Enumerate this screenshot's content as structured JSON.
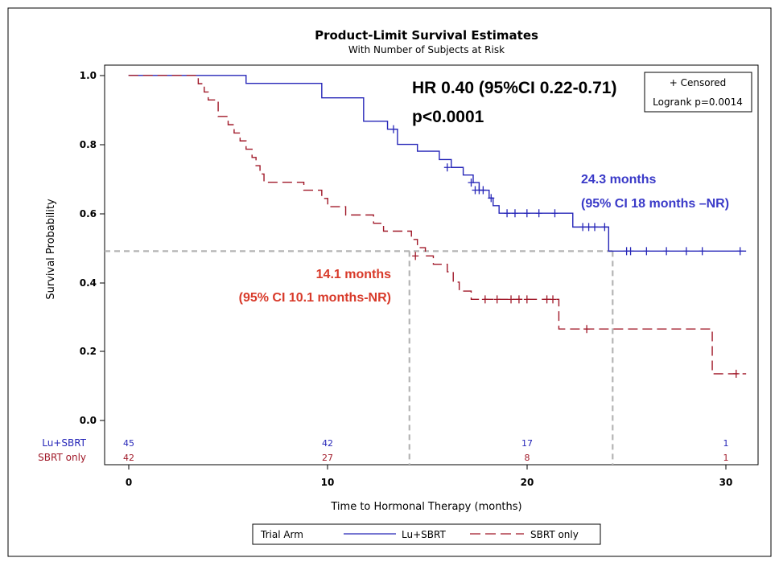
{
  "chart_data": {
    "type": "line",
    "title": "Product-Limit Survival Estimates",
    "subtitle": "With Number of Subjects at Risk",
    "xlabel": "Time to Hormonal Therapy (months)",
    "ylabel": "Survival Probability",
    "xlim": [
      -1.2,
      31.6
    ],
    "ylim": [
      -0.13,
      1.03
    ],
    "x_ticks": [
      0,
      10,
      20,
      30
    ],
    "y_ticks": [
      0.0,
      0.2,
      0.4,
      0.6,
      0.8,
      1.0
    ],
    "x_tick_labels": [
      "0",
      "10",
      "20",
      "30"
    ],
    "y_tick_labels": [
      "0.0",
      "0.2",
      "0.4",
      "0.6",
      "0.8",
      "1.0"
    ],
    "series": [
      {
        "name": "Lu+SBRT",
        "color": "#2626b8",
        "dash": "solid",
        "steps": [
          [
            0,
            1.0
          ],
          [
            5.9,
            0.977
          ],
          [
            9.7,
            0.935
          ],
          [
            11.8,
            0.867
          ],
          [
            13.0,
            0.844
          ],
          [
            13.5,
            0.8
          ],
          [
            14.5,
            0.78
          ],
          [
            15.6,
            0.756
          ],
          [
            16.2,
            0.733
          ],
          [
            16.8,
            0.711
          ],
          [
            17.3,
            0.689
          ],
          [
            17.6,
            0.667
          ],
          [
            18.1,
            0.644
          ],
          [
            18.3,
            0.622
          ],
          [
            18.6,
            0.6
          ],
          [
            22.3,
            0.56
          ],
          [
            24.1,
            0.49
          ]
        ],
        "end": 31.0,
        "censored": [
          [
            13.3,
            0.844
          ],
          [
            16.0,
            0.733
          ],
          [
            17.2,
            0.689
          ],
          [
            17.4,
            0.667
          ],
          [
            17.6,
            0.667
          ],
          [
            17.8,
            0.667
          ],
          [
            18.2,
            0.644
          ],
          [
            19.0,
            0.6
          ],
          [
            19.4,
            0.6
          ],
          [
            20.0,
            0.6
          ],
          [
            20.6,
            0.6
          ],
          [
            21.4,
            0.6
          ],
          [
            22.8,
            0.56
          ],
          [
            23.1,
            0.56
          ],
          [
            23.4,
            0.56
          ],
          [
            23.9,
            0.56
          ],
          [
            25.0,
            0.49
          ],
          [
            25.2,
            0.49
          ],
          [
            26.0,
            0.49
          ],
          [
            27.0,
            0.49
          ],
          [
            28.0,
            0.49
          ],
          [
            28.8,
            0.49
          ],
          [
            30.7,
            0.49
          ]
        ]
      },
      {
        "name": "SBRT only",
        "color": "#a01828",
        "dash": "dashed",
        "steps": [
          [
            0,
            1.0
          ],
          [
            3.5,
            0.976
          ],
          [
            3.8,
            0.952
          ],
          [
            4.0,
            0.929
          ],
          [
            4.5,
            0.881
          ],
          [
            5.0,
            0.857
          ],
          [
            5.3,
            0.833
          ],
          [
            5.6,
            0.81
          ],
          [
            5.9,
            0.786
          ],
          [
            6.2,
            0.762
          ],
          [
            6.4,
            0.738
          ],
          [
            6.6,
            0.714
          ],
          [
            6.8,
            0.69
          ],
          [
            8.8,
            0.667
          ],
          [
            9.7,
            0.643
          ],
          [
            10.0,
            0.619
          ],
          [
            10.9,
            0.595
          ],
          [
            12.3,
            0.571
          ],
          [
            12.8,
            0.548
          ],
          [
            14.2,
            0.524
          ],
          [
            14.5,
            0.5
          ],
          [
            14.9,
            0.476
          ],
          [
            15.3,
            0.452
          ],
          [
            16.0,
            0.43
          ],
          [
            16.3,
            0.4
          ],
          [
            16.6,
            0.374
          ],
          [
            17.2,
            0.35
          ],
          [
            21.6,
            0.264
          ],
          [
            29.3,
            0.134
          ]
        ],
        "end": 31.0,
        "censored": [
          [
            14.4,
            0.476
          ],
          [
            17.9,
            0.35
          ],
          [
            18.5,
            0.35
          ],
          [
            19.2,
            0.35
          ],
          [
            19.6,
            0.35
          ],
          [
            20.0,
            0.35
          ],
          [
            21.0,
            0.35
          ],
          [
            21.3,
            0.35
          ],
          [
            23.0,
            0.264
          ],
          [
            30.5,
            0.134
          ]
        ]
      }
    ],
    "median_guides": {
      "level": 0.49,
      "xs": [
        14.1,
        24.3
      ],
      "color": "#b4b4b4"
    },
    "inset": {
      "censored": "+ Censored",
      "logrank": "Logrank p=0.0014"
    },
    "hr_annotation": {
      "line1": "HR 0.40 (95%CI 0.22-0.71)",
      "line2": "p<0.0001"
    },
    "median_annotations": {
      "lu": {
        "line1": "24.3 months",
        "line2": "(95% CI 18 months –NR)",
        "color": "#3a3ac8"
      },
      "sbrt": {
        "line1": "14.1 months",
        "line2": "(95% CI 10.1 months-NR)",
        "color": "#d83a2a"
      }
    },
    "risk_table": {
      "times": [
        0,
        10,
        20,
        30
      ],
      "rows": [
        {
          "label": "Lu+SBRT",
          "counts": [
            "45",
            "42",
            "17",
            "1"
          ],
          "color": "#2626b8"
        },
        {
          "label": "SBRT only",
          "counts": [
            "42",
            "27",
            "8",
            "1"
          ],
          "color": "#a01828"
        }
      ]
    },
    "legend": {
      "title": "Trial Arm",
      "placement": "bottom",
      "items": [
        {
          "label": "Lu+SBRT",
          "color": "#2626b8",
          "dash": "solid"
        },
        {
          "label": "SBRT only",
          "color": "#a01828",
          "dash": "dashed"
        }
      ]
    },
    "grid": false
  }
}
